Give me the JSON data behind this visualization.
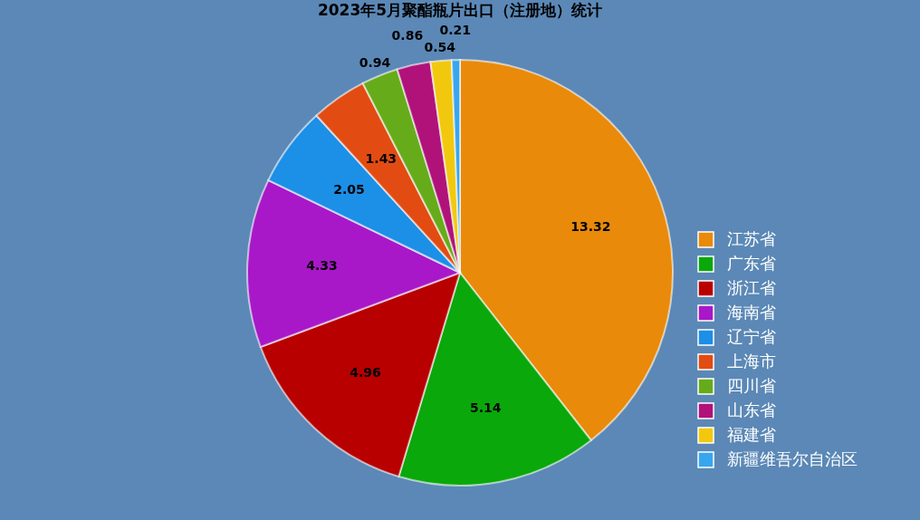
{
  "chart_data": {
    "type": "pie",
    "title": "2023年5月聚酯瓶片出口（注册地）统计",
    "categories": [
      "江苏省",
      "广东省",
      "浙江省",
      "海南省",
      "辽宁省",
      "上海市",
      "四川省",
      "山东省",
      "福建省",
      "新疆维吾尔自治区"
    ],
    "values": [
      13.32,
      5.14,
      4.96,
      4.33,
      2.05,
      1.43,
      0.94,
      0.86,
      0.54,
      0.21
    ],
    "colors": [
      "#e98a0a",
      "#0aa80a",
      "#b80000",
      "#a818c8",
      "#1c8fe6",
      "#e24c12",
      "#66ac1a",
      "#b0127a",
      "#f2c80f",
      "#38a6ee"
    ],
    "data_labels": true,
    "legend": "right"
  }
}
